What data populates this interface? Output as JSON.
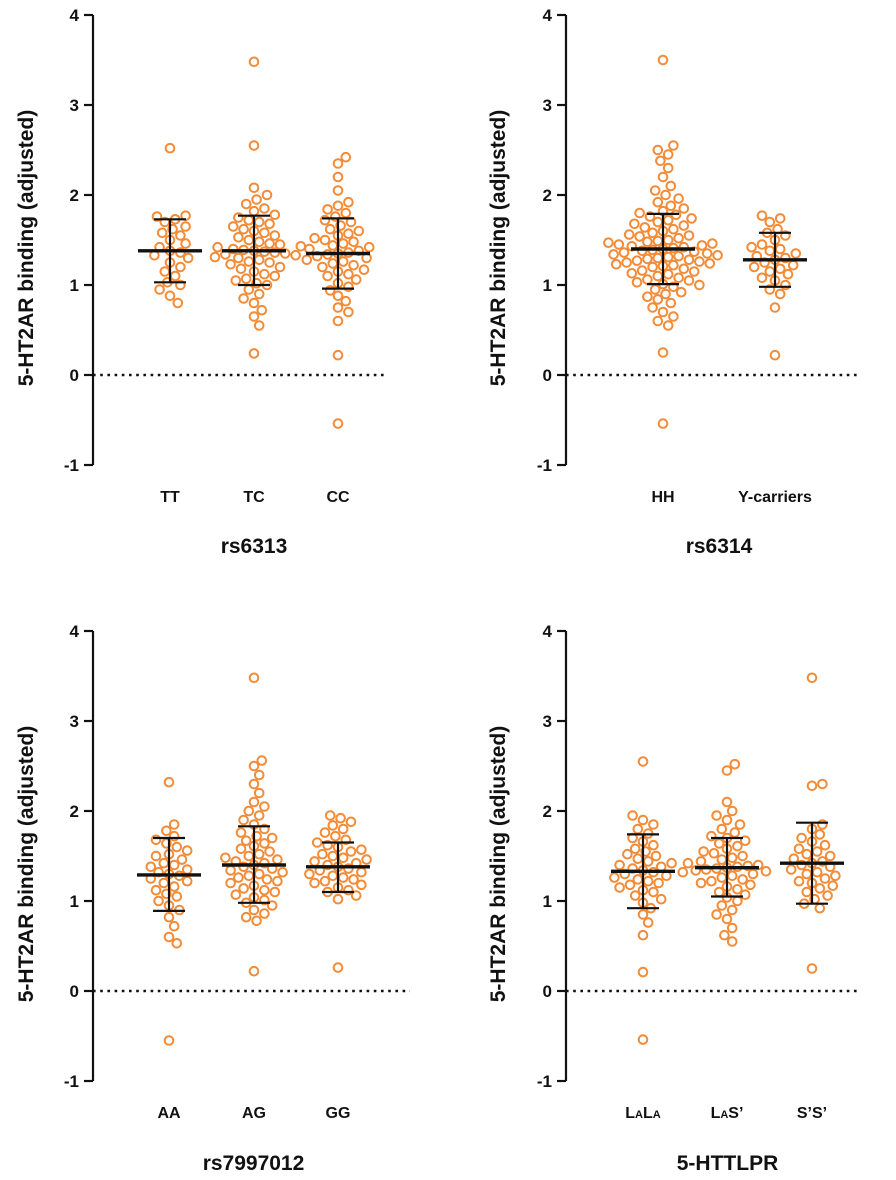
{
  "chart_data": [
    {
      "type": "scatter",
      "subtype": "dot-plot-mean-sd",
      "xlabel": "rs6313",
      "ylabel": "5-HT2AR binding (adjusted)",
      "ylim": [
        -1,
        4
      ],
      "yticks": [
        "4",
        "3",
        "2",
        "1",
        "0",
        "-1"
      ],
      "reference_line": {
        "y": 0,
        "style": "dotted"
      },
      "point_color": "#F28C38",
      "groups": [
        {
          "label": "TT",
          "mean": 1.38,
          "sd_low": 1.03,
          "sd_high": 1.73,
          "points": [
            2.52,
            1.77,
            1.76,
            1.73,
            1.7,
            1.65,
            1.62,
            1.58,
            1.55,
            1.5,
            1.46,
            1.42,
            1.38,
            1.36,
            1.33,
            1.3,
            1.25,
            1.2,
            1.15,
            1.1,
            1.03,
            1.0,
            0.95,
            0.88,
            0.8
          ]
        },
        {
          "label": "TC",
          "mean": 1.38,
          "sd_low": 1.0,
          "sd_high": 1.77,
          "points": [
            3.48,
            2.55,
            2.08,
            2.0,
            1.95,
            1.9,
            1.85,
            1.82,
            1.78,
            1.75,
            1.72,
            1.7,
            1.68,
            1.65,
            1.62,
            1.6,
            1.58,
            1.55,
            1.53,
            1.5,
            1.48,
            1.46,
            1.45,
            1.43,
            1.42,
            1.4,
            1.39,
            1.38,
            1.37,
            1.36,
            1.35,
            1.34,
            1.33,
            1.31,
            1.3,
            1.28,
            1.26,
            1.25,
            1.23,
            1.2,
            1.18,
            1.15,
            1.12,
            1.1,
            1.07,
            1.05,
            1.02,
            1.0,
            0.95,
            0.9,
            0.85,
            0.8,
            0.72,
            0.65,
            0.55,
            0.24
          ]
        },
        {
          "label": "CC",
          "mean": 1.35,
          "sd_low": 0.96,
          "sd_high": 1.74,
          "points": [
            2.42,
            2.35,
            2.2,
            2.05,
            1.92,
            1.88,
            1.84,
            1.8,
            1.76,
            1.72,
            1.7,
            1.66,
            1.62,
            1.6,
            1.57,
            1.55,
            1.52,
            1.5,
            1.48,
            1.46,
            1.44,
            1.42,
            1.4,
            1.38,
            1.36,
            1.35,
            1.34,
            1.32,
            1.3,
            1.28,
            1.26,
            1.24,
            1.22,
            1.2,
            1.17,
            1.15,
            1.12,
            1.1,
            1.06,
            1.02,
            0.98,
            0.94,
            0.88,
            0.82,
            0.75,
            0.7,
            0.6,
            0.22,
            -0.54
          ]
        }
      ]
    },
    {
      "type": "scatter",
      "subtype": "dot-plot-mean-sd",
      "xlabel": "rs6314",
      "ylabel": "5-HT2AR binding (adjusted)",
      "ylim": [
        -1,
        4
      ],
      "yticks": [
        "4",
        "3",
        "2",
        "1",
        "0",
        "-1"
      ],
      "reference_line": {
        "y": 0,
        "style": "dotted"
      },
      "point_color": "#F28C38",
      "groups": [
        {
          "label": "HH",
          "mean": 1.4,
          "sd_low": 1.01,
          "sd_high": 1.79,
          "points": [
            3.5,
            2.55,
            2.5,
            2.45,
            2.38,
            2.3,
            2.2,
            2.1,
            2.05,
            2.0,
            1.96,
            1.92,
            1.88,
            1.85,
            1.82,
            1.8,
            1.78,
            1.76,
            1.74,
            1.72,
            1.7,
            1.68,
            1.66,
            1.64,
            1.62,
            1.6,
            1.58,
            1.56,
            1.55,
            1.54,
            1.52,
            1.5,
            1.49,
            1.48,
            1.47,
            1.46,
            1.45,
            1.44,
            1.43,
            1.42,
            1.41,
            1.4,
            1.39,
            1.38,
            1.37,
            1.36,
            1.35,
            1.34,
            1.33,
            1.32,
            1.31,
            1.3,
            1.29,
            1.28,
            1.27,
            1.26,
            1.25,
            1.24,
            1.23,
            1.22,
            1.21,
            1.2,
            1.18,
            1.16,
            1.15,
            1.13,
            1.12,
            1.1,
            1.08,
            1.06,
            1.05,
            1.03,
            1.01,
            1.0,
            0.98,
            0.95,
            0.92,
            0.9,
            0.87,
            0.84,
            0.8,
            0.75,
            0.7,
            0.65,
            0.6,
            0.55,
            0.25,
            -0.54
          ]
        },
        {
          "label": "Y-carriers",
          "mean": 1.28,
          "sd_low": 0.98,
          "sd_high": 1.58,
          "points": [
            1.77,
            1.74,
            1.7,
            1.62,
            1.58,
            1.55,
            1.5,
            1.45,
            1.42,
            1.4,
            1.38,
            1.35,
            1.32,
            1.3,
            1.28,
            1.25,
            1.22,
            1.2,
            1.18,
            1.15,
            1.12,
            1.08,
            1.05,
            1.0,
            0.95,
            0.9,
            0.75,
            0.22
          ]
        }
      ]
    },
    {
      "type": "scatter",
      "subtype": "dot-plot-mean-sd",
      "xlabel": "rs7997012",
      "ylabel": "5-HT2AR binding (adjusted)",
      "ylim": [
        -1,
        4
      ],
      "yticks": [
        "4",
        "3",
        "2",
        "1",
        "0",
        "-1"
      ],
      "reference_line": {
        "y": 0,
        "style": "dotted"
      },
      "point_color": "#F28C38",
      "groups": [
        {
          "label": "AA",
          "mean": 1.29,
          "sd_low": 0.89,
          "sd_high": 1.7,
          "points": [
            2.32,
            1.85,
            1.78,
            1.72,
            1.68,
            1.64,
            1.6,
            1.56,
            1.52,
            1.5,
            1.46,
            1.42,
            1.4,
            1.38,
            1.35,
            1.32,
            1.3,
            1.28,
            1.25,
            1.22,
            1.2,
            1.16,
            1.12,
            1.08,
            1.05,
            1.0,
            0.95,
            0.9,
            0.82,
            0.72,
            0.6,
            0.53,
            -0.55
          ]
        },
        {
          "label": "AG",
          "mean": 1.4,
          "sd_low": 0.98,
          "sd_high": 1.83,
          "points": [
            3.48,
            2.56,
            2.5,
            2.4,
            2.3,
            2.2,
            2.1,
            2.05,
            2.0,
            1.95,
            1.9,
            1.85,
            1.8,
            1.76,
            1.72,
            1.7,
            1.67,
            1.64,
            1.61,
            1.58,
            1.55,
            1.52,
            1.5,
            1.48,
            1.46,
            1.44,
            1.42,
            1.4,
            1.38,
            1.36,
            1.34,
            1.32,
            1.3,
            1.28,
            1.26,
            1.24,
            1.22,
            1.2,
            1.17,
            1.14,
            1.12,
            1.1,
            1.07,
            1.04,
            1.01,
            0.98,
            0.95,
            0.9,
            0.86,
            0.82,
            0.78,
            0.22
          ]
        },
        {
          "label": "GG",
          "mean": 1.38,
          "sd_low": 1.1,
          "sd_high": 1.65,
          "points": [
            1.95,
            1.92,
            1.88,
            1.84,
            1.8,
            1.76,
            1.72,
            1.68,
            1.65,
            1.62,
            1.6,
            1.57,
            1.55,
            1.52,
            1.5,
            1.48,
            1.46,
            1.44,
            1.42,
            1.4,
            1.38,
            1.36,
            1.34,
            1.32,
            1.3,
            1.28,
            1.26,
            1.24,
            1.22,
            1.2,
            1.18,
            1.15,
            1.12,
            1.1,
            1.06,
            1.02,
            0.26
          ]
        }
      ]
    },
    {
      "type": "scatter",
      "subtype": "dot-plot-mean-sd",
      "xlabel": "5-HTTLPR",
      "ylabel": "5-HT2AR binding (adjusted)",
      "ylim": [
        -1,
        4
      ],
      "yticks": [
        "4",
        "3",
        "2",
        "1",
        "0",
        "-1"
      ],
      "reference_line": {
        "y": 0,
        "style": "dotted"
      },
      "point_color": "#F28C38",
      "groups": [
        {
          "label": "LALA",
          "label_parts": [
            "L",
            "A",
            "L",
            "A"
          ],
          "mean": 1.33,
          "sd_low": 0.92,
          "sd_high": 1.74,
          "points": [
            2.55,
            1.95,
            1.9,
            1.85,
            1.8,
            1.75,
            1.7,
            1.66,
            1.62,
            1.58,
            1.55,
            1.52,
            1.5,
            1.47,
            1.44,
            1.42,
            1.4,
            1.38,
            1.36,
            1.34,
            1.32,
            1.3,
            1.28,
            1.26,
            1.24,
            1.22,
            1.2,
            1.18,
            1.15,
            1.12,
            1.1,
            1.06,
            1.02,
            0.98,
            0.92,
            0.85,
            0.76,
            0.62,
            0.21,
            -0.54
          ]
        },
        {
          "label": "LAS’",
          "label_parts": [
            "L",
            "A",
            "S’"
          ],
          "mean": 1.37,
          "sd_low": 1.05,
          "sd_high": 1.7,
          "points": [
            2.52,
            2.45,
            2.1,
            2.0,
            1.95,
            1.9,
            1.85,
            1.8,
            1.76,
            1.72,
            1.7,
            1.67,
            1.64,
            1.61,
            1.58,
            1.55,
            1.53,
            1.5,
            1.48,
            1.46,
            1.44,
            1.42,
            1.4,
            1.39,
            1.38,
            1.37,
            1.36,
            1.35,
            1.34,
            1.33,
            1.32,
            1.3,
            1.28,
            1.26,
            1.24,
            1.22,
            1.2,
            1.18,
            1.16,
            1.13,
            1.1,
            1.07,
            1.04,
            1.0,
            0.95,
            0.9,
            0.85,
            0.8,
            0.7,
            0.62,
            0.55
          ]
        },
        {
          "label": "S’S’",
          "mean": 1.42,
          "sd_low": 0.97,
          "sd_high": 1.87,
          "points": [
            3.48,
            2.3,
            2.28,
            1.85,
            1.8,
            1.74,
            1.7,
            1.66,
            1.62,
            1.58,
            1.55,
            1.52,
            1.5,
            1.47,
            1.44,
            1.42,
            1.4,
            1.38,
            1.35,
            1.32,
            1.3,
            1.28,
            1.25,
            1.22,
            1.2,
            1.17,
            1.14,
            1.1,
            1.06,
            1.02,
            0.97,
            0.92,
            0.25
          ]
        }
      ]
    }
  ]
}
